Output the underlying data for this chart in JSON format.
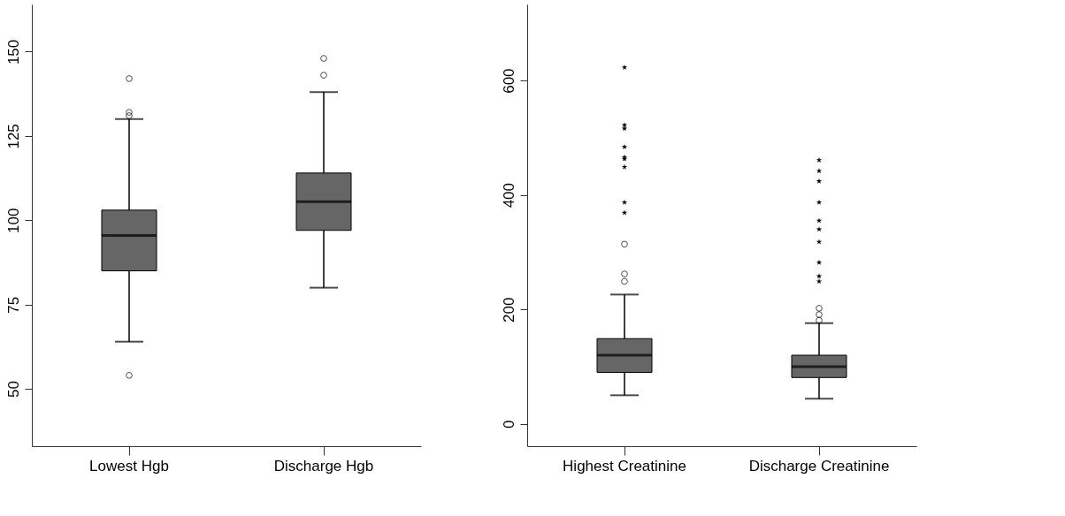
{
  "chart_data": [
    {
      "type": "box",
      "categories": [
        "Lowest Hgb",
        "Discharge Hgb"
      ],
      "ylim": [
        33,
        164
      ],
      "yticks": [
        50,
        75,
        100,
        125,
        150
      ],
      "grid": false,
      "legend": false,
      "series": [
        {
          "color": "#666666",
          "boxes": [
            {
              "low": 64,
              "q1": 85,
              "median": 95.5,
              "q3": 103,
              "high": 130,
              "outliers": [
                142,
                132,
                131,
                54
              ]
            },
            {
              "low": 80,
              "q1": 97,
              "median": 105.5,
              "q3": 114,
              "high": 138,
              "outliers": [
                148,
                143
              ]
            }
          ]
        }
      ]
    },
    {
      "type": "box",
      "categories": [
        "Highest Creatinine",
        "Discharge Creatinine"
      ],
      "ylim": [
        -39,
        733
      ],
      "yticks": [
        0,
        200,
        400,
        600
      ],
      "grid": false,
      "legend": false,
      "series": [
        {
          "color": "#666666",
          "boxes": [
            {
              "low": 50,
              "q1": 90,
              "median": 120,
              "q3": 149,
              "high": 226,
              "outliers": [
                314,
                262,
                249
              ]
            },
            {
              "low": 44,
              "q1": 81,
              "median": 100,
              "q3": 120,
              "high": 176,
              "outliers": [
                202,
                191,
                181
              ]
            }
          ]
        },
        {
          "type": "scatter",
          "marker": "star",
          "color": "#000000",
          "x": [
            "Highest Creatinine",
            "Highest Creatinine",
            "Highest Creatinine",
            "Highest Creatinine",
            "Highest Creatinine",
            "Highest Creatinine",
            "Highest Creatinine",
            "Highest Creatinine",
            "Highest Creatinine",
            "Discharge Creatinine",
            "Discharge Creatinine",
            "Discharge Creatinine",
            "Discharge Creatinine",
            "Discharge Creatinine",
            "Discharge Creatinine",
            "Discharge Creatinine",
            "Discharge Creatinine",
            "Discharge Creatinine",
            "Discharge Creatinine"
          ],
          "values": [
            623,
            522,
            516,
            484,
            466,
            463,
            449,
            387,
            369,
            461,
            442,
            424,
            387,
            355,
            340,
            318,
            282,
            258,
            249
          ]
        }
      ]
    }
  ]
}
